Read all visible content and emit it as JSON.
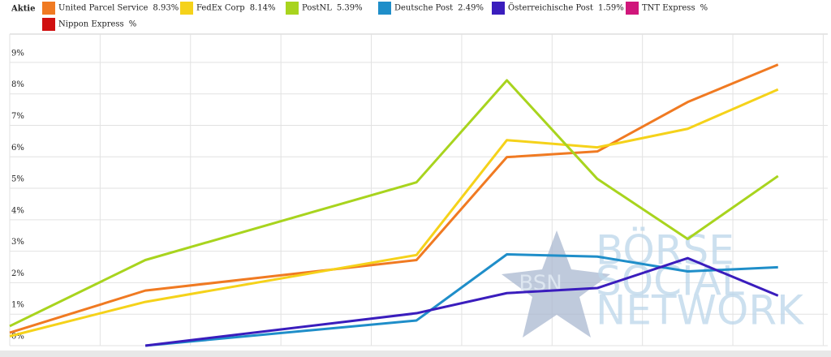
{
  "chart_data": {
    "type": "line",
    "legend_title": "Aktie",
    "x": [
      0,
      3,
      9,
      11,
      13,
      15,
      17
    ],
    "xlim": [
      0,
      18.1
    ],
    "xticks": [
      0,
      2,
      4,
      6,
      8,
      10,
      12,
      14,
      16,
      18
    ],
    "ylim": [
      0,
      9.9
    ],
    "yticks": [
      {
        "value": 0,
        "label": "0%"
      },
      {
        "value": 1,
        "label": "1%"
      },
      {
        "value": 2,
        "label": "2%"
      },
      {
        "value": 3,
        "label": "3%"
      },
      {
        "value": 4,
        "label": "4%"
      },
      {
        "value": 5,
        "label": "5%"
      },
      {
        "value": 6,
        "label": "6%"
      },
      {
        "value": 7,
        "label": "7%"
      },
      {
        "value": 8,
        "label": "8%"
      },
      {
        "value": 9,
        "label": "9%"
      }
    ],
    "grid": true,
    "series": [
      {
        "name": "United Parcel Service",
        "total_label": "8.93%",
        "color": "#f07a22",
        "values": [
          0.41,
          1.75,
          2.72,
          5.99,
          6.17,
          7.74,
          8.93
        ]
      },
      {
        "name": "FedEx Corp",
        "total_label": "8.14%",
        "color": "#f5d21a",
        "values": [
          0.3,
          1.39,
          2.88,
          6.53,
          6.3,
          6.89,
          8.14
        ]
      },
      {
        "name": "PostNL",
        "total_label": "5.39%",
        "color": "#a8d41e",
        "values": [
          0.62,
          2.72,
          5.19,
          8.43,
          5.3,
          3.39,
          5.39
        ]
      },
      {
        "name": "Deutsche Post",
        "total_label": "2.49%",
        "color": "#1f8ec9",
        "values": [
          null,
          0,
          0.8,
          2.9,
          2.83,
          2.36,
          2.49
        ]
      },
      {
        "name": "Österreichische Post",
        "total_label": "1.59%",
        "color": "#3a1dbd",
        "values": [
          null,
          0,
          1.03,
          1.67,
          1.83,
          2.78,
          1.59
        ]
      },
      {
        "name": "TNT Express",
        "total_label": "%",
        "color": "#d0177b",
        "values": [
          null,
          null,
          null,
          null,
          null,
          null,
          null
        ]
      },
      {
        "name": "Nippon Express",
        "total_label": "%",
        "color": "#d01010",
        "values": [
          null,
          null,
          null,
          null,
          null,
          null,
          null
        ]
      }
    ],
    "watermark": {
      "badge": "BSN",
      "lines": [
        "BÖRSE",
        "SOCIAL",
        "NETWORK"
      ]
    }
  }
}
